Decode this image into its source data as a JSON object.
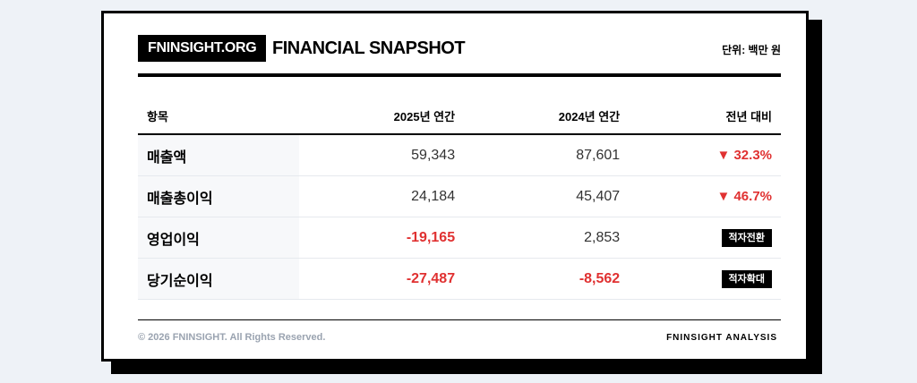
{
  "header": {
    "brand": "FNINSIGHT.ORG",
    "title": "FINANCIAL SNAPSHOT",
    "unit": "단위: 백만 원"
  },
  "table": {
    "columns": [
      "항목",
      "2025년 연간",
      "2024년 연간",
      "전년 대비"
    ],
    "rows": [
      {
        "item": "매출액",
        "y2025": "59,343",
        "y2024": "87,601",
        "change": "▼ 32.3%"
      },
      {
        "item": "매출총이익",
        "y2025": "24,184",
        "y2024": "45,407",
        "change": "▼ 46.7%"
      },
      {
        "item": "영업이익",
        "y2025": "-19,165",
        "y2024": "2,853",
        "change": "적자전환"
      },
      {
        "item": "당기순이익",
        "y2025": "-27,487",
        "y2024": "-8,562",
        "change": "적자확대"
      }
    ]
  },
  "footer": {
    "copyright": "© 2026 FNINSIGHT. All Rights Reserved.",
    "tagline": "FNINSIGHT ANALYSIS"
  },
  "colors": {
    "negative": "#e03131",
    "accent": "#000000"
  }
}
